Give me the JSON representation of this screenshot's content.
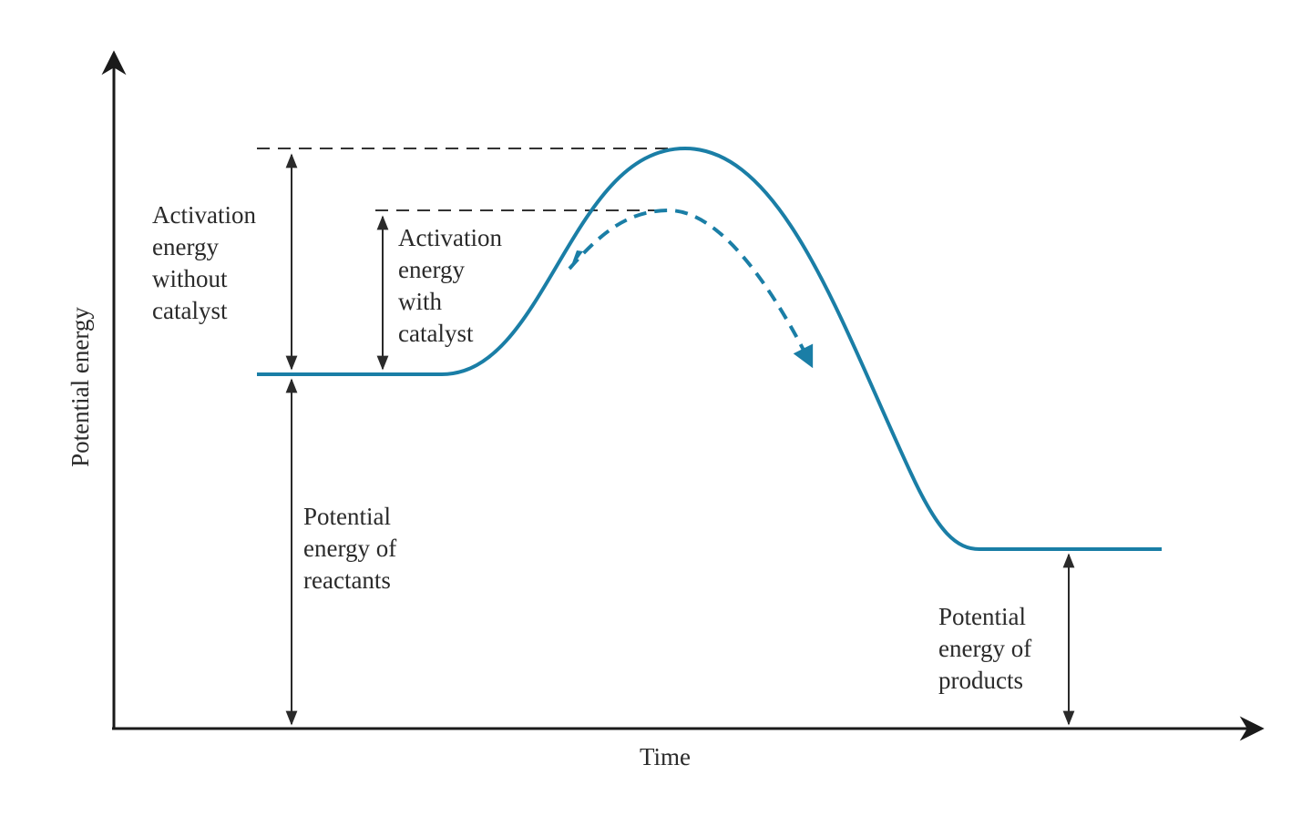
{
  "labels": {
    "y_axis": "Potential energy",
    "x_axis": "Time",
    "ea_without": [
      "Activation",
      "energy",
      "without",
      "catalyst"
    ],
    "ea_with": [
      "Activation",
      "energy",
      "with",
      "catalyst"
    ],
    "reactants": [
      "Potential",
      "energy of",
      "reactants"
    ],
    "products": [
      "Potential",
      "energy of",
      "products"
    ]
  },
  "colors": {
    "curve": "#1a7ea6",
    "axis": "#1a1a1a",
    "text": "#2a2a2a"
  },
  "curves": [
    {
      "name": "without catalyst",
      "style": "solid"
    },
    {
      "name": "with catalyst",
      "style": "dashed"
    }
  ]
}
